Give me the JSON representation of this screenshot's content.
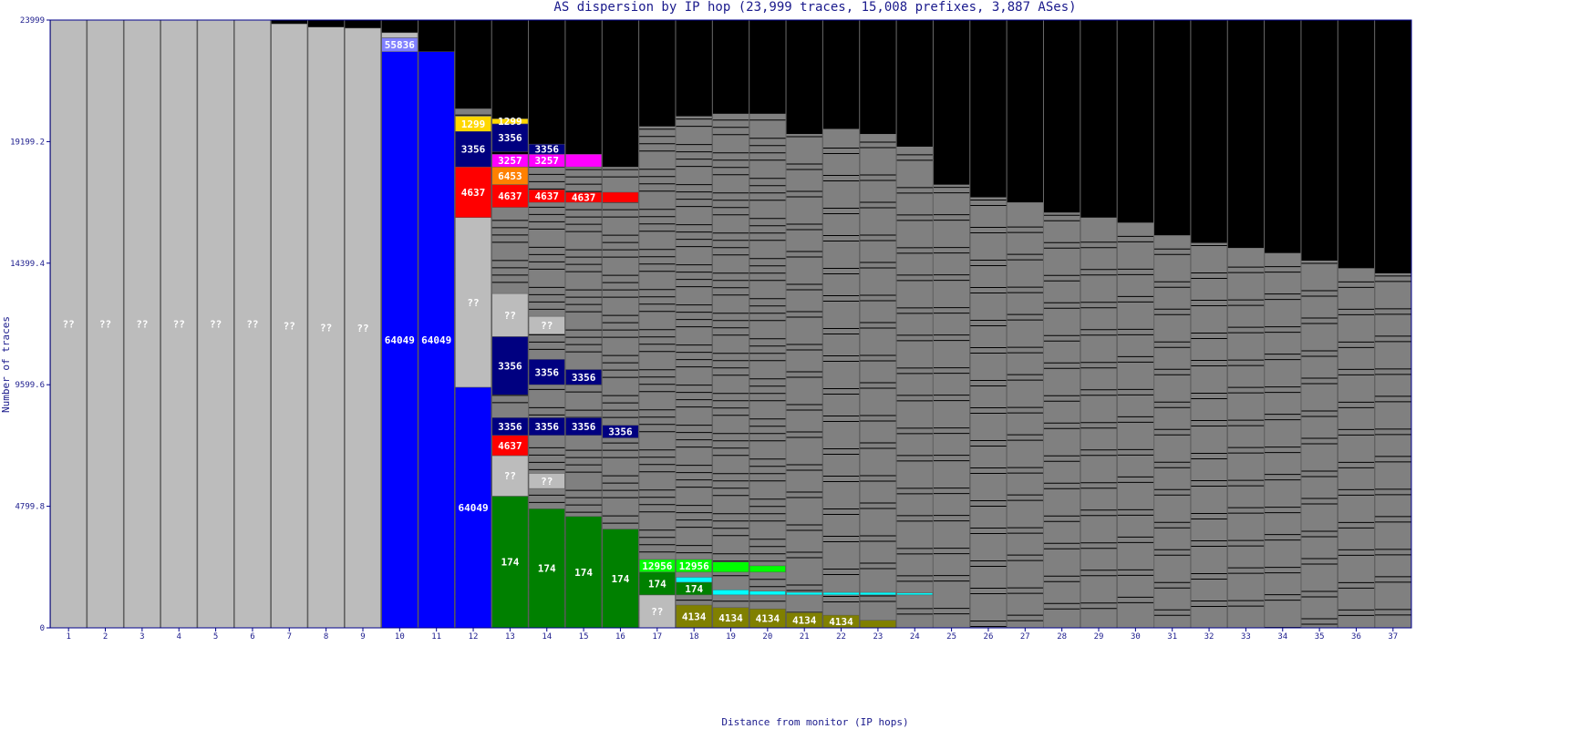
{
  "chart_data": {
    "type": "bar",
    "title": "AS dispersion by IP hop (23,999 traces, 15,008 prefixes, 3,887 ASes)",
    "xlabel": "Distance from monitor (IP hops)",
    "ylabel": "Number of traces",
    "ylim": [
      0,
      23999
    ],
    "yticks": [
      "0",
      "4799.8",
      "9599.6",
      "14399.4",
      "19199.2",
      "23999"
    ],
    "categories": [
      "1",
      "2",
      "3",
      "4",
      "5",
      "6",
      "7",
      "8",
      "9",
      "10",
      "11",
      "12",
      "13",
      "14",
      "15",
      "16",
      "17",
      "18",
      "19",
      "20",
      "21",
      "22",
      "23",
      "24",
      "25",
      "26",
      "27",
      "28",
      "29",
      "30",
      "31",
      "32",
      "33",
      "34",
      "35",
      "36",
      "37"
    ],
    "background_color": "#000000",
    "grid": false,
    "hops": [
      {
        "hop": 1,
        "segments": [
          {
            "label": "??",
            "from": 0,
            "to": 23999,
            "color": "#bcbcbc"
          }
        ]
      },
      {
        "hop": 2,
        "segments": [
          {
            "label": "??",
            "from": 0,
            "to": 23999,
            "color": "#bcbcbc"
          }
        ]
      },
      {
        "hop": 3,
        "segments": [
          {
            "label": "??",
            "from": 0,
            "to": 23999,
            "color": "#bcbcbc"
          }
        ]
      },
      {
        "hop": 4,
        "segments": [
          {
            "label": "??",
            "from": 0,
            "to": 23999,
            "color": "#bcbcbc"
          }
        ]
      },
      {
        "hop": 5,
        "segments": [
          {
            "label": "??",
            "from": 0,
            "to": 23999,
            "color": "#bcbcbc"
          }
        ]
      },
      {
        "hop": 6,
        "segments": [
          {
            "label": "??",
            "from": 0,
            "to": 23999,
            "color": "#bcbcbc"
          }
        ]
      },
      {
        "hop": 7,
        "segments": [
          {
            "label": "??",
            "from": 0,
            "to": 23850,
            "color": "#bcbcbc"
          }
        ]
      },
      {
        "hop": 8,
        "segments": [
          {
            "label": "??",
            "from": 0,
            "to": 23720,
            "color": "#bcbcbc"
          }
        ]
      },
      {
        "hop": 9,
        "segments": [
          {
            "label": "??",
            "from": 0,
            "to": 23680,
            "color": "#bcbcbc"
          }
        ]
      },
      {
        "hop": 10,
        "segments": [
          {
            "label": "64049",
            "from": 0,
            "to": 22750,
            "color": "#0000ff"
          },
          {
            "label": "55836",
            "from": 22750,
            "to": 23300,
            "color": "#8080ff"
          },
          {
            "label": "",
            "from": 23300,
            "to": 23500,
            "color": "#bcbcbc"
          }
        ]
      },
      {
        "hop": 11,
        "segments": [
          {
            "label": "64049",
            "from": 0,
            "to": 22750,
            "color": "#0000ff"
          }
        ]
      },
      {
        "hop": 12,
        "segments": [
          {
            "label": "64049",
            "from": 0,
            "to": 9500,
            "color": "#0000ff"
          },
          {
            "label": "??",
            "from": 9500,
            "to": 16200,
            "color": "#bcbcbc"
          },
          {
            "label": "4637",
            "from": 16200,
            "to": 18200,
            "color": "#ff0000"
          },
          {
            "label": "3356",
            "from": 18200,
            "to": 19600,
            "color": "#000080"
          },
          {
            "label": "1299",
            "from": 19600,
            "to": 20200,
            "color": "#ffd700"
          }
        ]
      },
      {
        "hop": 13,
        "segments": [
          {
            "label": "174",
            "from": 0,
            "to": 5200,
            "color": "#008000"
          },
          {
            "label": "??",
            "from": 5200,
            "to": 6800,
            "color": "#bcbcbc"
          },
          {
            "label": "4637",
            "from": 6800,
            "to": 7600,
            "color": "#ff0000"
          },
          {
            "label": "3356",
            "from": 7600,
            "to": 8300,
            "color": "#000080"
          },
          {
            "label": "3356",
            "from": 9200,
            "to": 11500,
            "color": "#000080"
          },
          {
            "label": "??",
            "from": 11500,
            "to": 13200,
            "color": "#bcbcbc"
          },
          {
            "label": "4637",
            "from": 16600,
            "to": 17500,
            "color": "#ff0000"
          },
          {
            "label": "6453",
            "from": 17500,
            "to": 18200,
            "color": "#ff8000"
          },
          {
            "label": "3257",
            "from": 18200,
            "to": 18700,
            "color": "#ff00ff"
          },
          {
            "label": "3356",
            "from": 18800,
            "to": 19900,
            "color": "#000080"
          },
          {
            "label": "1299",
            "from": 19900,
            "to": 20100,
            "color": "#ffd700"
          }
        ]
      },
      {
        "hop": 14,
        "segments": [
          {
            "label": "174",
            "from": 0,
            "to": 4700,
            "color": "#008000"
          },
          {
            "label": "??",
            "from": 5500,
            "to": 6100,
            "color": "#bcbcbc"
          },
          {
            "label": "3356",
            "from": 7600,
            "to": 8300,
            "color": "#000080"
          },
          {
            "label": "3356",
            "from": 9600,
            "to": 10600,
            "color": "#000080"
          },
          {
            "label": "??",
            "from": 11600,
            "to": 12300,
            "color": "#bcbcbc"
          },
          {
            "label": "4637",
            "from": 16800,
            "to": 17300,
            "color": "#ff0000"
          },
          {
            "label": "3257",
            "from": 18200,
            "to": 18700,
            "color": "#ff00ff"
          },
          {
            "label": "3356",
            "from": 18700,
            "to": 19100,
            "color": "#000080"
          }
        ]
      },
      {
        "hop": 15,
        "segments": [
          {
            "label": "174",
            "from": 0,
            "to": 4400,
            "color": "#008000"
          },
          {
            "label": "3356",
            "from": 7600,
            "to": 8300,
            "color": "#000080"
          },
          {
            "label": "3356",
            "from": 9600,
            "to": 10200,
            "color": "#000080"
          },
          {
            "label": "4637",
            "from": 16800,
            "to": 17200,
            "color": "#ff0000"
          },
          {
            "label": "",
            "from": 18200,
            "to": 18700,
            "color": "#ff00ff"
          }
        ]
      },
      {
        "hop": 16,
        "segments": [
          {
            "label": "174",
            "from": 0,
            "to": 3900,
            "color": "#008000"
          },
          {
            "label": "3356",
            "from": 7500,
            "to": 8000,
            "color": "#000080"
          },
          {
            "label": "",
            "from": 16800,
            "to": 17200,
            "color": "#ff0000"
          }
        ]
      },
      {
        "hop": 17,
        "segments": [
          {
            "label": "??",
            "from": 0,
            "to": 1300,
            "color": "#bcbcbc"
          },
          {
            "label": "174",
            "from": 1300,
            "to": 2200,
            "color": "#008000"
          },
          {
            "label": "12956",
            "from": 2200,
            "to": 2700,
            "color": "#00ff00"
          }
        ]
      },
      {
        "hop": 18,
        "segments": [
          {
            "label": "4134",
            "from": 0,
            "to": 900,
            "color": "#808000"
          },
          {
            "label": "174",
            "from": 1300,
            "to": 1800,
            "color": "#008000"
          },
          {
            "label": "",
            "from": 1800,
            "to": 2000,
            "color": "#00ffff"
          },
          {
            "label": "12956",
            "from": 2200,
            "to": 2700,
            "color": "#00ff00"
          }
        ]
      },
      {
        "hop": 19,
        "segments": [
          {
            "label": "4134",
            "from": 0,
            "to": 800,
            "color": "#808000"
          },
          {
            "label": "",
            "from": 1300,
            "to": 1500,
            "color": "#00ffff"
          },
          {
            "label": "",
            "from": 2200,
            "to": 2600,
            "color": "#00ff00"
          }
        ]
      },
      {
        "hop": 20,
        "segments": [
          {
            "label": "4134",
            "from": 0,
            "to": 750,
            "color": "#808000"
          },
          {
            "label": "",
            "from": 1300,
            "to": 1450,
            "color": "#00ffff"
          },
          {
            "label": "",
            "from": 2200,
            "to": 2450,
            "color": "#00ff00"
          }
        ]
      },
      {
        "hop": 21,
        "segments": [
          {
            "label": "4134",
            "from": 0,
            "to": 600,
            "color": "#808000"
          },
          {
            "label": "",
            "from": 1300,
            "to": 1400,
            "color": "#00ffff"
          }
        ]
      },
      {
        "hop": 22,
        "segments": [
          {
            "label": "4134",
            "from": 0,
            "to": 500,
            "color": "#808000"
          },
          {
            "label": "",
            "from": 1300,
            "to": 1400,
            "color": "#00ffff"
          }
        ]
      },
      {
        "hop": 23,
        "segments": [
          {
            "label": "",
            "from": 0,
            "to": 300,
            "color": "#808000"
          },
          {
            "label": "",
            "from": 1300,
            "to": 1400,
            "color": "#00ffff"
          }
        ]
      },
      {
        "hop": 24,
        "segments": [
          {
            "label": "",
            "from": 1300,
            "to": 1380,
            "color": "#00ffff"
          }
        ]
      },
      {
        "hop": 25,
        "segments": []
      },
      {
        "hop": 26,
        "segments": []
      },
      {
        "hop": 27,
        "segments": []
      },
      {
        "hop": 28,
        "segments": []
      },
      {
        "hop": 29,
        "segments": []
      },
      {
        "hop": 30,
        "segments": []
      },
      {
        "hop": 31,
        "segments": []
      },
      {
        "hop": 32,
        "segments": []
      },
      {
        "hop": 33,
        "segments": []
      },
      {
        "hop": 34,
        "segments": []
      },
      {
        "hop": 35,
        "segments": []
      },
      {
        "hop": 36,
        "segments": []
      },
      {
        "hop": 37,
        "segments": []
      }
    ],
    "gray_band_tops": [
      0,
      0,
      0,
      0,
      0,
      0,
      0,
      0,
      0,
      0,
      0,
      20500,
      18500,
      18300,
      18200,
      18200,
      19800,
      20200,
      20300,
      20300,
      19500,
      19700,
      19500,
      19000,
      17500,
      17000,
      16800,
      16400,
      16200,
      16000,
      15500,
      15200,
      15000,
      14800,
      14500,
      14200,
      14000
    ],
    "colors": {
      "frame": "#00008b",
      "text": "#1a1a8c",
      "background": "#000000",
      "unknown": "#bcbcbc",
      "minor": "#808080"
    }
  }
}
